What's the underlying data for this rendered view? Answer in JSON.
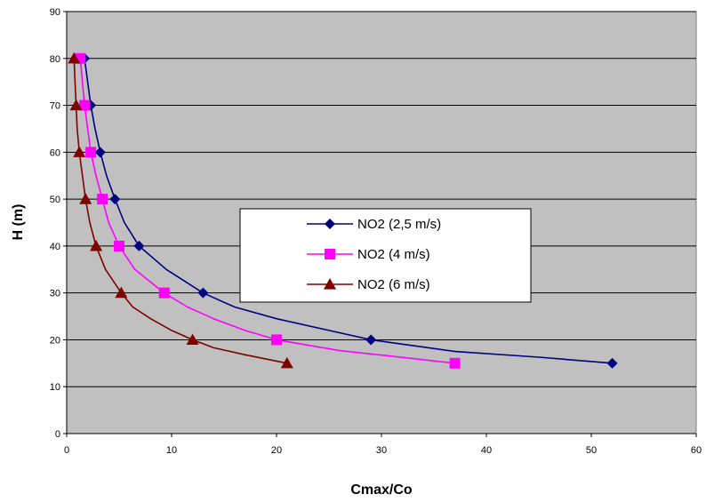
{
  "chart_data": {
    "type": "line",
    "xlabel": "Cmax/Co",
    "ylabel": "H (m)",
    "xlim": [
      0,
      60
    ],
    "ylim": [
      0,
      90
    ],
    "xticks": [
      0,
      10,
      20,
      30,
      40,
      50,
      60
    ],
    "yticks": [
      0,
      10,
      20,
      30,
      40,
      50,
      60,
      70,
      80,
      90
    ],
    "grid": "horizontal",
    "plot_background": "#c0c0c0",
    "legend_position": "center-right",
    "series": [
      {
        "name": "NO2 (2,5 m/s)",
        "color": "#000080",
        "marker": "diamond",
        "points": [
          [
            1.7,
            80
          ],
          [
            2.3,
            70
          ],
          [
            3.2,
            60
          ],
          [
            4.6,
            50
          ],
          [
            6.9,
            40
          ],
          [
            13,
            30
          ],
          [
            29,
            20
          ],
          [
            52,
            15
          ]
        ],
        "curve": [
          [
            1.7,
            80
          ],
          [
            2.0,
            75
          ],
          [
            2.3,
            70
          ],
          [
            2.7,
            65
          ],
          [
            3.2,
            60
          ],
          [
            3.8,
            55
          ],
          [
            4.6,
            50
          ],
          [
            5.5,
            45
          ],
          [
            6.9,
            40
          ],
          [
            9.5,
            35
          ],
          [
            13,
            30
          ],
          [
            16,
            27
          ],
          [
            20,
            24.5
          ],
          [
            25,
            22
          ],
          [
            29,
            20
          ],
          [
            37,
            17.5
          ],
          [
            45,
            16.3
          ],
          [
            52,
            15
          ]
        ]
      },
      {
        "name": "NO2 (4 m/s)",
        "color": "#ff00ff",
        "marker": "square",
        "points": [
          [
            1.3,
            80
          ],
          [
            1.7,
            70
          ],
          [
            2.3,
            60
          ],
          [
            3.4,
            50
          ],
          [
            5,
            40
          ],
          [
            9.3,
            30
          ],
          [
            20,
            20
          ],
          [
            37,
            15
          ]
        ],
        "curve": [
          [
            1.3,
            80
          ],
          [
            1.5,
            75
          ],
          [
            1.7,
            70
          ],
          [
            2.0,
            65
          ],
          [
            2.3,
            60
          ],
          [
            2.8,
            55
          ],
          [
            3.4,
            50
          ],
          [
            4.0,
            45
          ],
          [
            5,
            40
          ],
          [
            6.5,
            35
          ],
          [
            9.3,
            30
          ],
          [
            11.5,
            27
          ],
          [
            14,
            24.5
          ],
          [
            17,
            22
          ],
          [
            20,
            20
          ],
          [
            26,
            17.7
          ],
          [
            31,
            16.5
          ],
          [
            37,
            15
          ]
        ]
      },
      {
        "name": "NO2 (6 m/s)",
        "color": "#800000",
        "marker": "triangle",
        "points": [
          [
            0.7,
            80
          ],
          [
            0.9,
            70
          ],
          [
            1.2,
            60
          ],
          [
            1.8,
            50
          ],
          [
            2.8,
            40
          ],
          [
            5.2,
            30
          ],
          [
            12,
            20
          ],
          [
            21,
            15
          ]
        ],
        "curve": [
          [
            0.7,
            80
          ],
          [
            0.8,
            75
          ],
          [
            0.9,
            70
          ],
          [
            1.0,
            65
          ],
          [
            1.2,
            60
          ],
          [
            1.5,
            55
          ],
          [
            1.8,
            50
          ],
          [
            2.2,
            45
          ],
          [
            2.8,
            40
          ],
          [
            3.7,
            35
          ],
          [
            5.2,
            30
          ],
          [
            6.3,
            27
          ],
          [
            8,
            24.5
          ],
          [
            10,
            22
          ],
          [
            12,
            20
          ],
          [
            14,
            18.3
          ],
          [
            17,
            16.8
          ],
          [
            21,
            15
          ]
        ]
      }
    ]
  }
}
